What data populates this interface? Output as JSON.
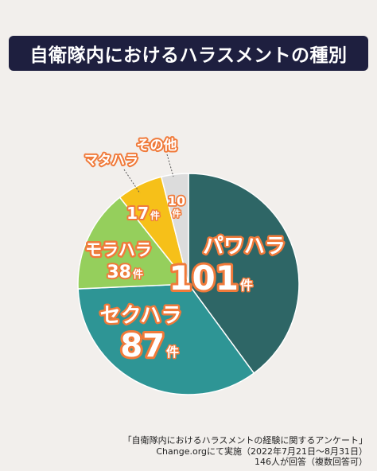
{
  "title": "自衛隊内におけるハラスメントの種別",
  "chart_data": {
    "type": "pie",
    "unit": "件",
    "slices": [
      {
        "label": "パワハラ",
        "value": 101,
        "color": "#2e6666"
      },
      {
        "label": "セクハラ",
        "value": 87,
        "color": "#2e9595"
      },
      {
        "label": "モラハラ",
        "value": 38,
        "color": "#95cf5c"
      },
      {
        "label": "マタハラ",
        "value": 17,
        "color": "#f6c019"
      },
      {
        "label": "その他",
        "value": 10,
        "color": "#dcdcdc"
      }
    ],
    "label_outline_color": "#f07a3a"
  },
  "source": {
    "line1": "「自衛隊内におけるハラスメントの経験に関するアンケート」",
    "line2": "Change.orgにて実施（2022年7月21日～8月31日）",
    "line3": "146人が回答（複数回答可）"
  }
}
